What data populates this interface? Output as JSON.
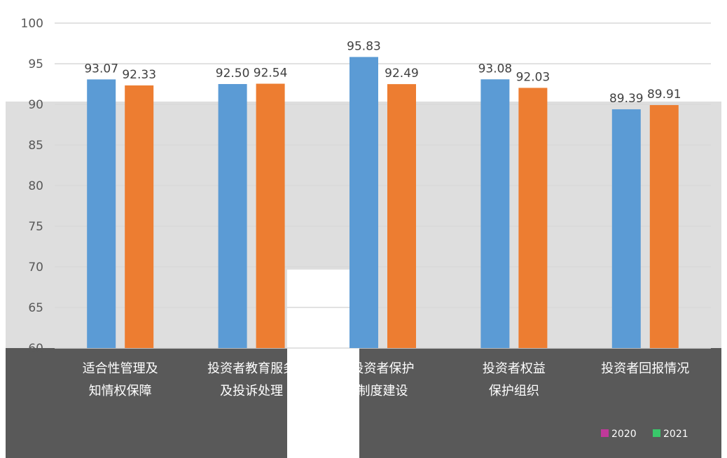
{
  "chart_data": {
    "type": "bar",
    "categories": [
      [
        "适合性管理及",
        "知情权保障"
      ],
      [
        "投资者教育服务",
        "及投诉处理"
      ],
      [
        "投资者保护",
        "制度建设"
      ],
      [
        "投资者权益",
        "保护组织"
      ],
      [
        "投资者回报情况"
      ]
    ],
    "series": [
      {
        "name": "2020",
        "values": [
          93.07,
          92.5,
          95.83,
          93.08,
          89.39
        ],
        "color": "#5b9bd5"
      },
      {
        "name": "2021",
        "values": [
          92.33,
          92.54,
          92.49,
          92.03,
          89.91
        ],
        "color": "#ed7d31"
      }
    ],
    "data_labels": [
      [
        "93.07",
        "92.50",
        "95.83",
        "93.08",
        "89.39"
      ],
      [
        "92.33",
        "92.54",
        "92.49",
        "92.03",
        "89.91"
      ]
    ],
    "y_ticks": [
      60,
      65,
      70,
      75,
      80,
      85,
      90,
      95,
      100
    ],
    "ylim": [
      60,
      100
    ],
    "grid": true,
    "legend_position": "bottom-right",
    "legend_swatch_colors": [
      "#c0399a",
      "#39c76a"
    ],
    "background_color": "#595959",
    "gridline_color": "#d9d9d9"
  }
}
